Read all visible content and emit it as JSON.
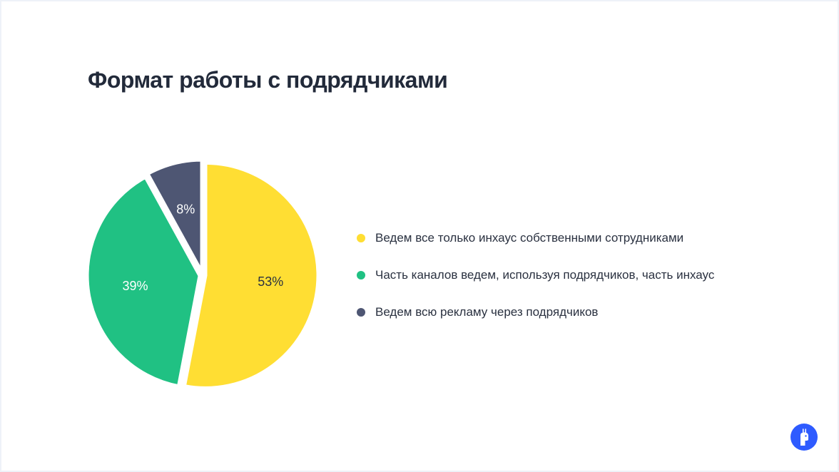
{
  "chart_data": {
    "type": "pie",
    "title": "Формат работы с подрядчиками",
    "slices": [
      {
        "label": "Ведем все только инхаус собственными сотрудниками",
        "value": 53,
        "value_label": "53%",
        "color": "#FFDE33",
        "text_color": "#2a3140"
      },
      {
        "label": "Часть каналов ведем, используя подрядчиков, часть инхаус",
        "value": 39,
        "value_label": "39%",
        "color": "#20C183",
        "text_color": "#ffffff"
      },
      {
        "label": "Ведем всю рекламу через подрядчиков",
        "value": 8,
        "value_label": "8%",
        "color": "#4E5673",
        "text_color": "#ffffff"
      }
    ],
    "legend_position": "right"
  },
  "logo": {
    "icon": "llama-icon",
    "color": "#2E5BFF"
  }
}
